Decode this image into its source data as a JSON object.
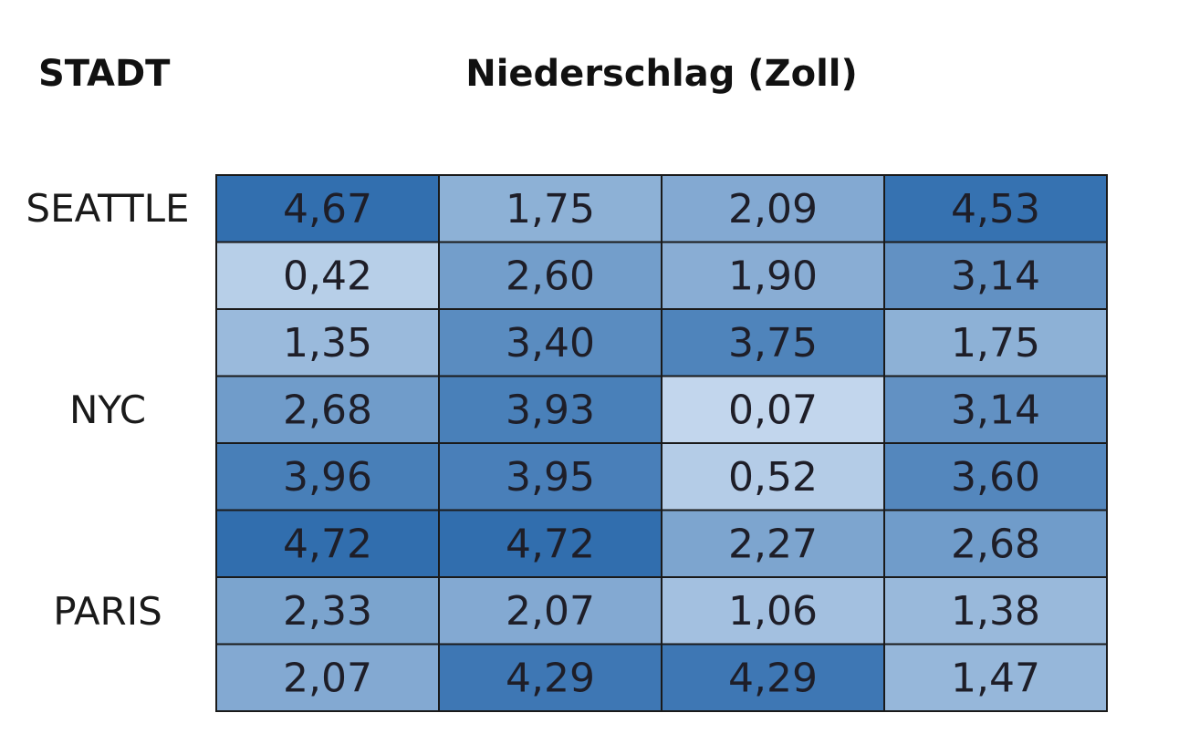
{
  "chart_data": {
    "type": "heatmap",
    "row_header": "STADT",
    "title": "Niederschlag (Zoll)",
    "row_labels": [
      "SEATTLE",
      "",
      "",
      "NYC",
      "",
      "",
      "PARIS",
      ""
    ],
    "values": [
      [
        "4,67",
        "1,75",
        "2,09",
        "4,53"
      ],
      [
        "0,42",
        "2,60",
        "1,90",
        "3,14"
      ],
      [
        "1,35",
        "3,40",
        "3,75",
        "1,75"
      ],
      [
        "2,68",
        "3,93",
        "0,07",
        "3,14"
      ],
      [
        "3,96",
        "3,95",
        "0,52",
        "3,60"
      ],
      [
        "4,72",
        "4,72",
        "2,27",
        "2,68"
      ],
      [
        "2,33",
        "2,07",
        "1,06",
        "1,38"
      ],
      [
        "2,07",
        "4,29",
        "4,29",
        "1,47"
      ]
    ],
    "color_low": "#c4d8ee",
    "color_high": "#2e6cad",
    "value_range": [
      0,
      4.8
    ],
    "border_color": "#1a1a1a"
  }
}
